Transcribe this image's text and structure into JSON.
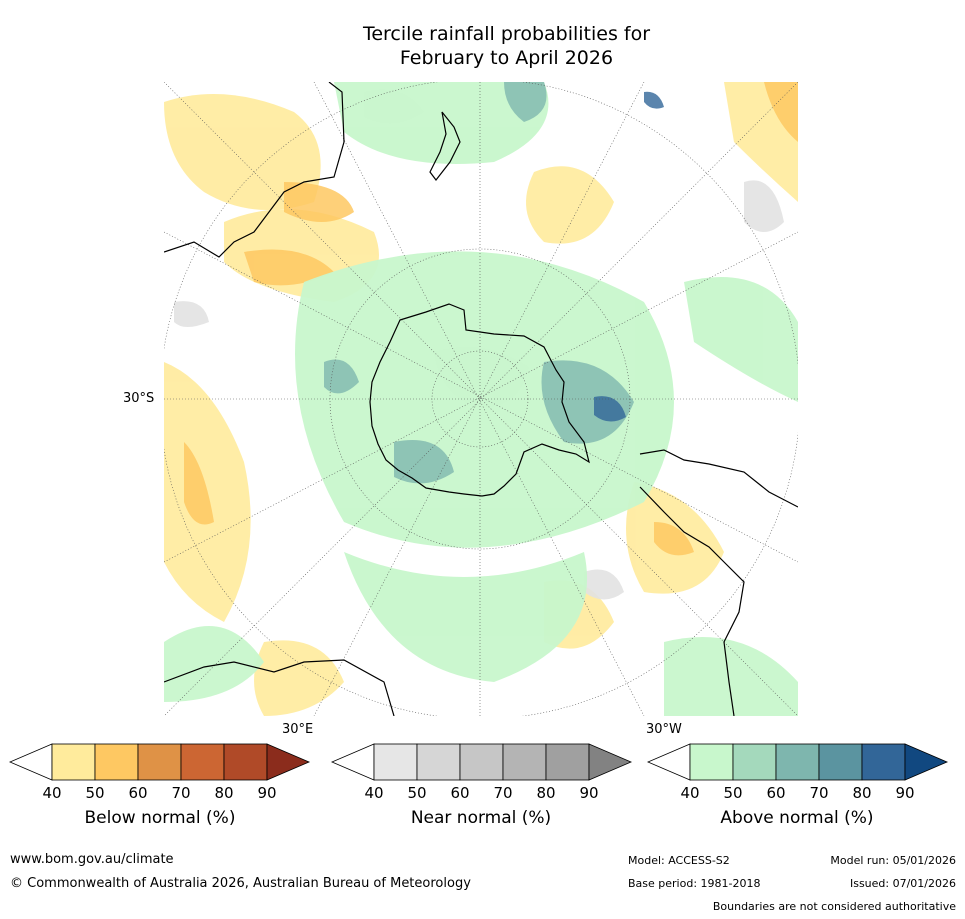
{
  "title_line1": "Tercile rainfall probabilities for",
  "title_line2": "February to April 2026",
  "map": {
    "lat_label": "30°S",
    "lon_label_east": "30°E",
    "lon_label_west": "30°W"
  },
  "colorbars": [
    {
      "title": "Below normal (%)",
      "ticks": [
        "40",
        "50",
        "60",
        "70",
        "80",
        "90"
      ],
      "colors": [
        "#ffffff",
        "#ffeb9c",
        "#fec862",
        "#df9246",
        "#cc6633",
        "#b04a28",
        "#8b2c1c"
      ]
    },
    {
      "title": "Near normal (%)",
      "ticks": [
        "40",
        "50",
        "60",
        "70",
        "80",
        "90"
      ],
      "colors": [
        "#ffffff",
        "#e6e6e6",
        "#d6d6d6",
        "#c6c6c6",
        "#b4b4b4",
        "#a0a0a0",
        "#828282"
      ]
    },
    {
      "title": "Above normal (%)",
      "ticks": [
        "40",
        "50",
        "60",
        "70",
        "80",
        "90"
      ],
      "colors": [
        "#ffffff",
        "#c8f7cc",
        "#a4d9bc",
        "#7eb6ae",
        "#5b94a0",
        "#326698",
        "#114880"
      ]
    }
  ],
  "footer": {
    "website": "www.bom.gov.au/climate",
    "copyright": "© Commonwealth of Australia 2026, Australian Bureau of Meteorology",
    "model": "Model: ACCESS-S2",
    "base_period": "Base period: 1981-2018",
    "model_run": "Model run: 05/01/2026",
    "issued": "Issued: 07/01/2026",
    "disclaimer": "Boundaries are not considered authoritative"
  }
}
